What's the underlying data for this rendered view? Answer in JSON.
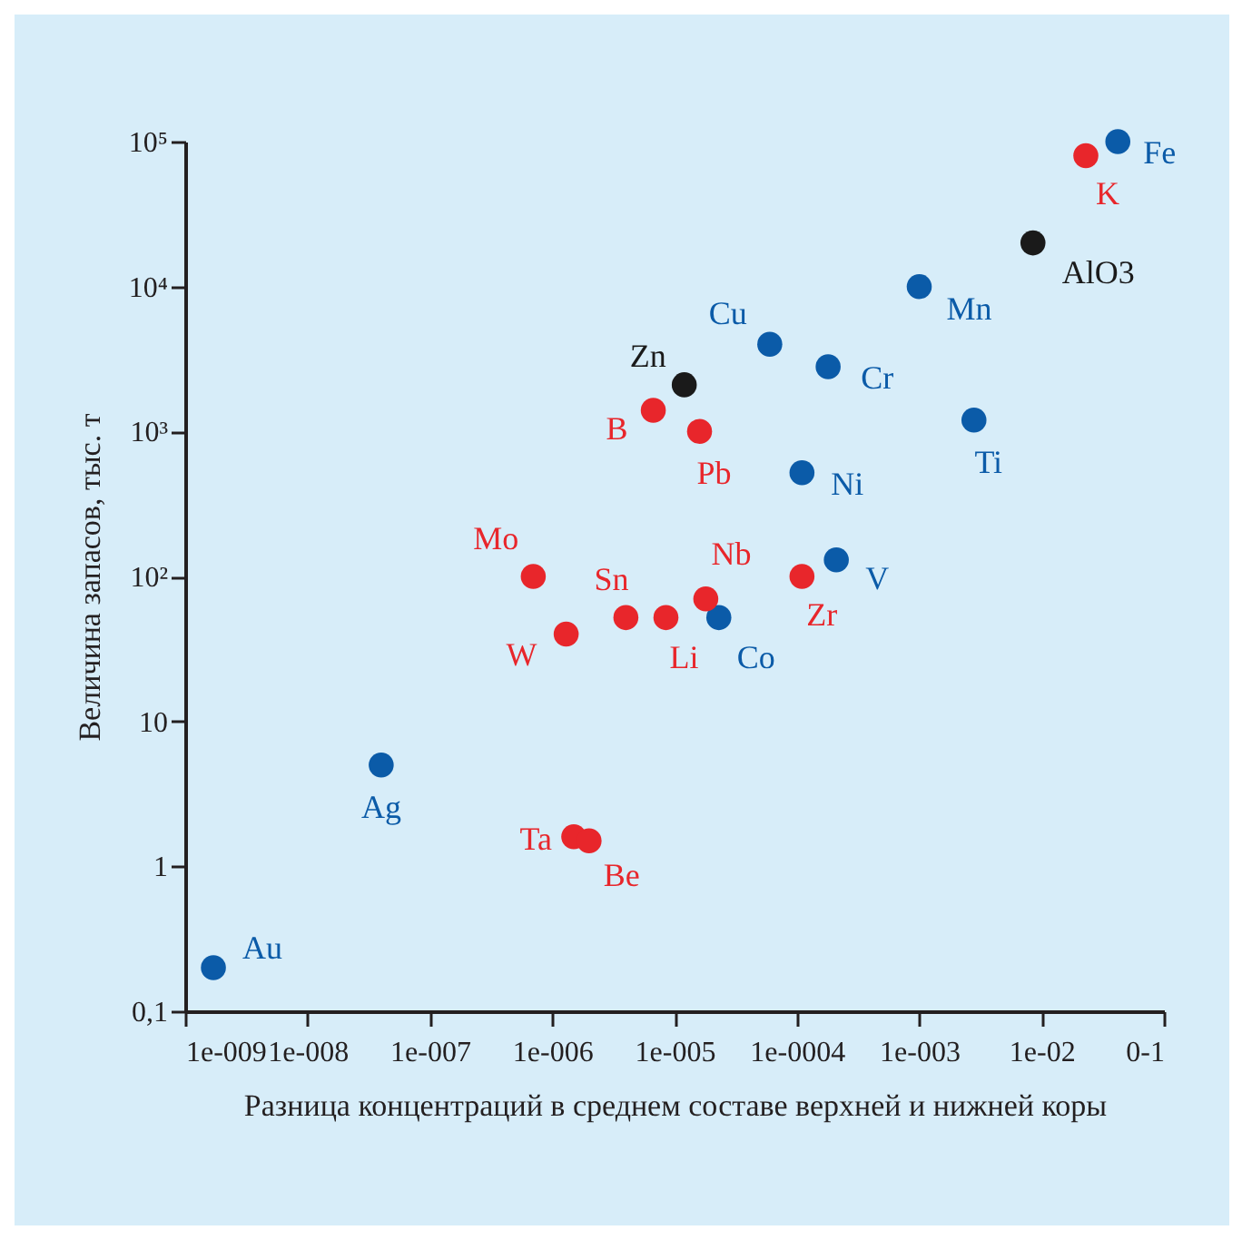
{
  "chart_data": {
    "type": "scatter",
    "xlabel": "Разница концентраций в среднем составе верхней и нижней коры",
    "ylabel": "Величина запасов, тыс. т",
    "log": "xy",
    "grid": false,
    "marker": "circle",
    "xlim": [
      1e-09,
      0.1
    ],
    "xticks": [
      {
        "value": 1e-09,
        "label": "1e-009"
      },
      {
        "value": 1e-08,
        "label": "1e-008"
      },
      {
        "value": 1e-07,
        "label": "1e-007"
      },
      {
        "value": 1e-06,
        "label": "1e-006"
      },
      {
        "value": 1e-05,
        "label": "1e-005"
      },
      {
        "value": 0.0001,
        "label": "1e-0004"
      },
      {
        "value": 0.001,
        "label": "1e-003"
      },
      {
        "value": 0.01,
        "label": "1e-02"
      },
      {
        "value": 0.1,
        "label": "0-1"
      }
    ],
    "ylim": [
      0.1,
      100000
    ],
    "yticks": [
      {
        "value": 0.1,
        "label": "0,1"
      },
      1,
      10,
      {
        "value": 100,
        "label": "10²"
      },
      {
        "value": 1000,
        "label": "10³"
      },
      {
        "value": 10000,
        "label": "10⁴"
      },
      {
        "value": 100000,
        "label": "10⁵"
      }
    ],
    "series": [
      {
        "color": "#0b5ba8",
        "x": [
          1.7e-09,
          4e-08,
          2.3e-05,
          0.00021,
          0.00011,
          6e-05,
          0.00018,
          0.0028,
          0.001,
          0.042
        ],
        "values": [
          0.2,
          5,
          52,
          130,
          520,
          4000,
          2800,
          1200,
          10000,
          100000
        ]
      },
      {
        "color": "#e8262b",
        "x": [
          1.5e-06,
          2e-06,
          1.3e-06,
          7e-07,
          4e-06,
          8.5e-06,
          1.8e-05,
          0.00011,
          6.7e-06,
          1.6e-05,
          0.023
        ],
        "values": [
          1.6,
          1.5,
          40,
          100,
          52,
          52,
          70,
          100,
          1400,
          1000,
          80000
        ]
      },
      {
        "color": "#1a1a1a",
        "x": [
          1.2e-05,
          0.0085
        ],
        "values": [
          2100,
          20000
        ]
      }
    ],
    "annotations": [
      {
        "text": "Au",
        "x": 1.7e-09,
        "y": 0.2
      },
      {
        "text": "Ag",
        "x": 4e-08,
        "y": 5
      },
      {
        "text": "Ta",
        "x": 1.5e-06,
        "y": 1.6
      },
      {
        "text": "Be",
        "x": 2e-06,
        "y": 1.5
      },
      {
        "text": "W",
        "x": 1.3e-06,
        "y": 40
      },
      {
        "text": "Mo",
        "x": 7e-07,
        "y": 100
      },
      {
        "text": "Sn",
        "x": 4e-06,
        "y": 52
      },
      {
        "text": "Li",
        "x": 8.5e-06,
        "y": 52
      },
      {
        "text": "Co",
        "x": 2.3e-05,
        "y": 52
      },
      {
        "text": "Nb",
        "x": 1.8e-05,
        "y": 70
      },
      {
        "text": "Zr",
        "x": 0.00011,
        "y": 100
      },
      {
        "text": "V",
        "x": 0.00021,
        "y": 130
      },
      {
        "text": "Ni",
        "x": 0.00011,
        "y": 520
      },
      {
        "text": "B",
        "x": 6.7e-06,
        "y": 1400
      },
      {
        "text": "Pb",
        "x": 1.6e-05,
        "y": 1000
      },
      {
        "text": "Zn",
        "x": 1.2e-05,
        "y": 2100
      },
      {
        "text": "Cu",
        "x": 6e-05,
        "y": 4000
      },
      {
        "text": "Cr",
        "x": 0.00018,
        "y": 2800
      },
      {
        "text": "Ti",
        "x": 0.0028,
        "y": 1200
      },
      {
        "text": "Mn",
        "x": 0.001,
        "y": 10000
      },
      {
        "text": "AlO3",
        "x": 0.0085,
        "y": 20000
      },
      {
        "text": "K",
        "x": 0.023,
        "y": 80000
      },
      {
        "text": "Fe",
        "x": 0.042,
        "y": 100000
      }
    ]
  }
}
